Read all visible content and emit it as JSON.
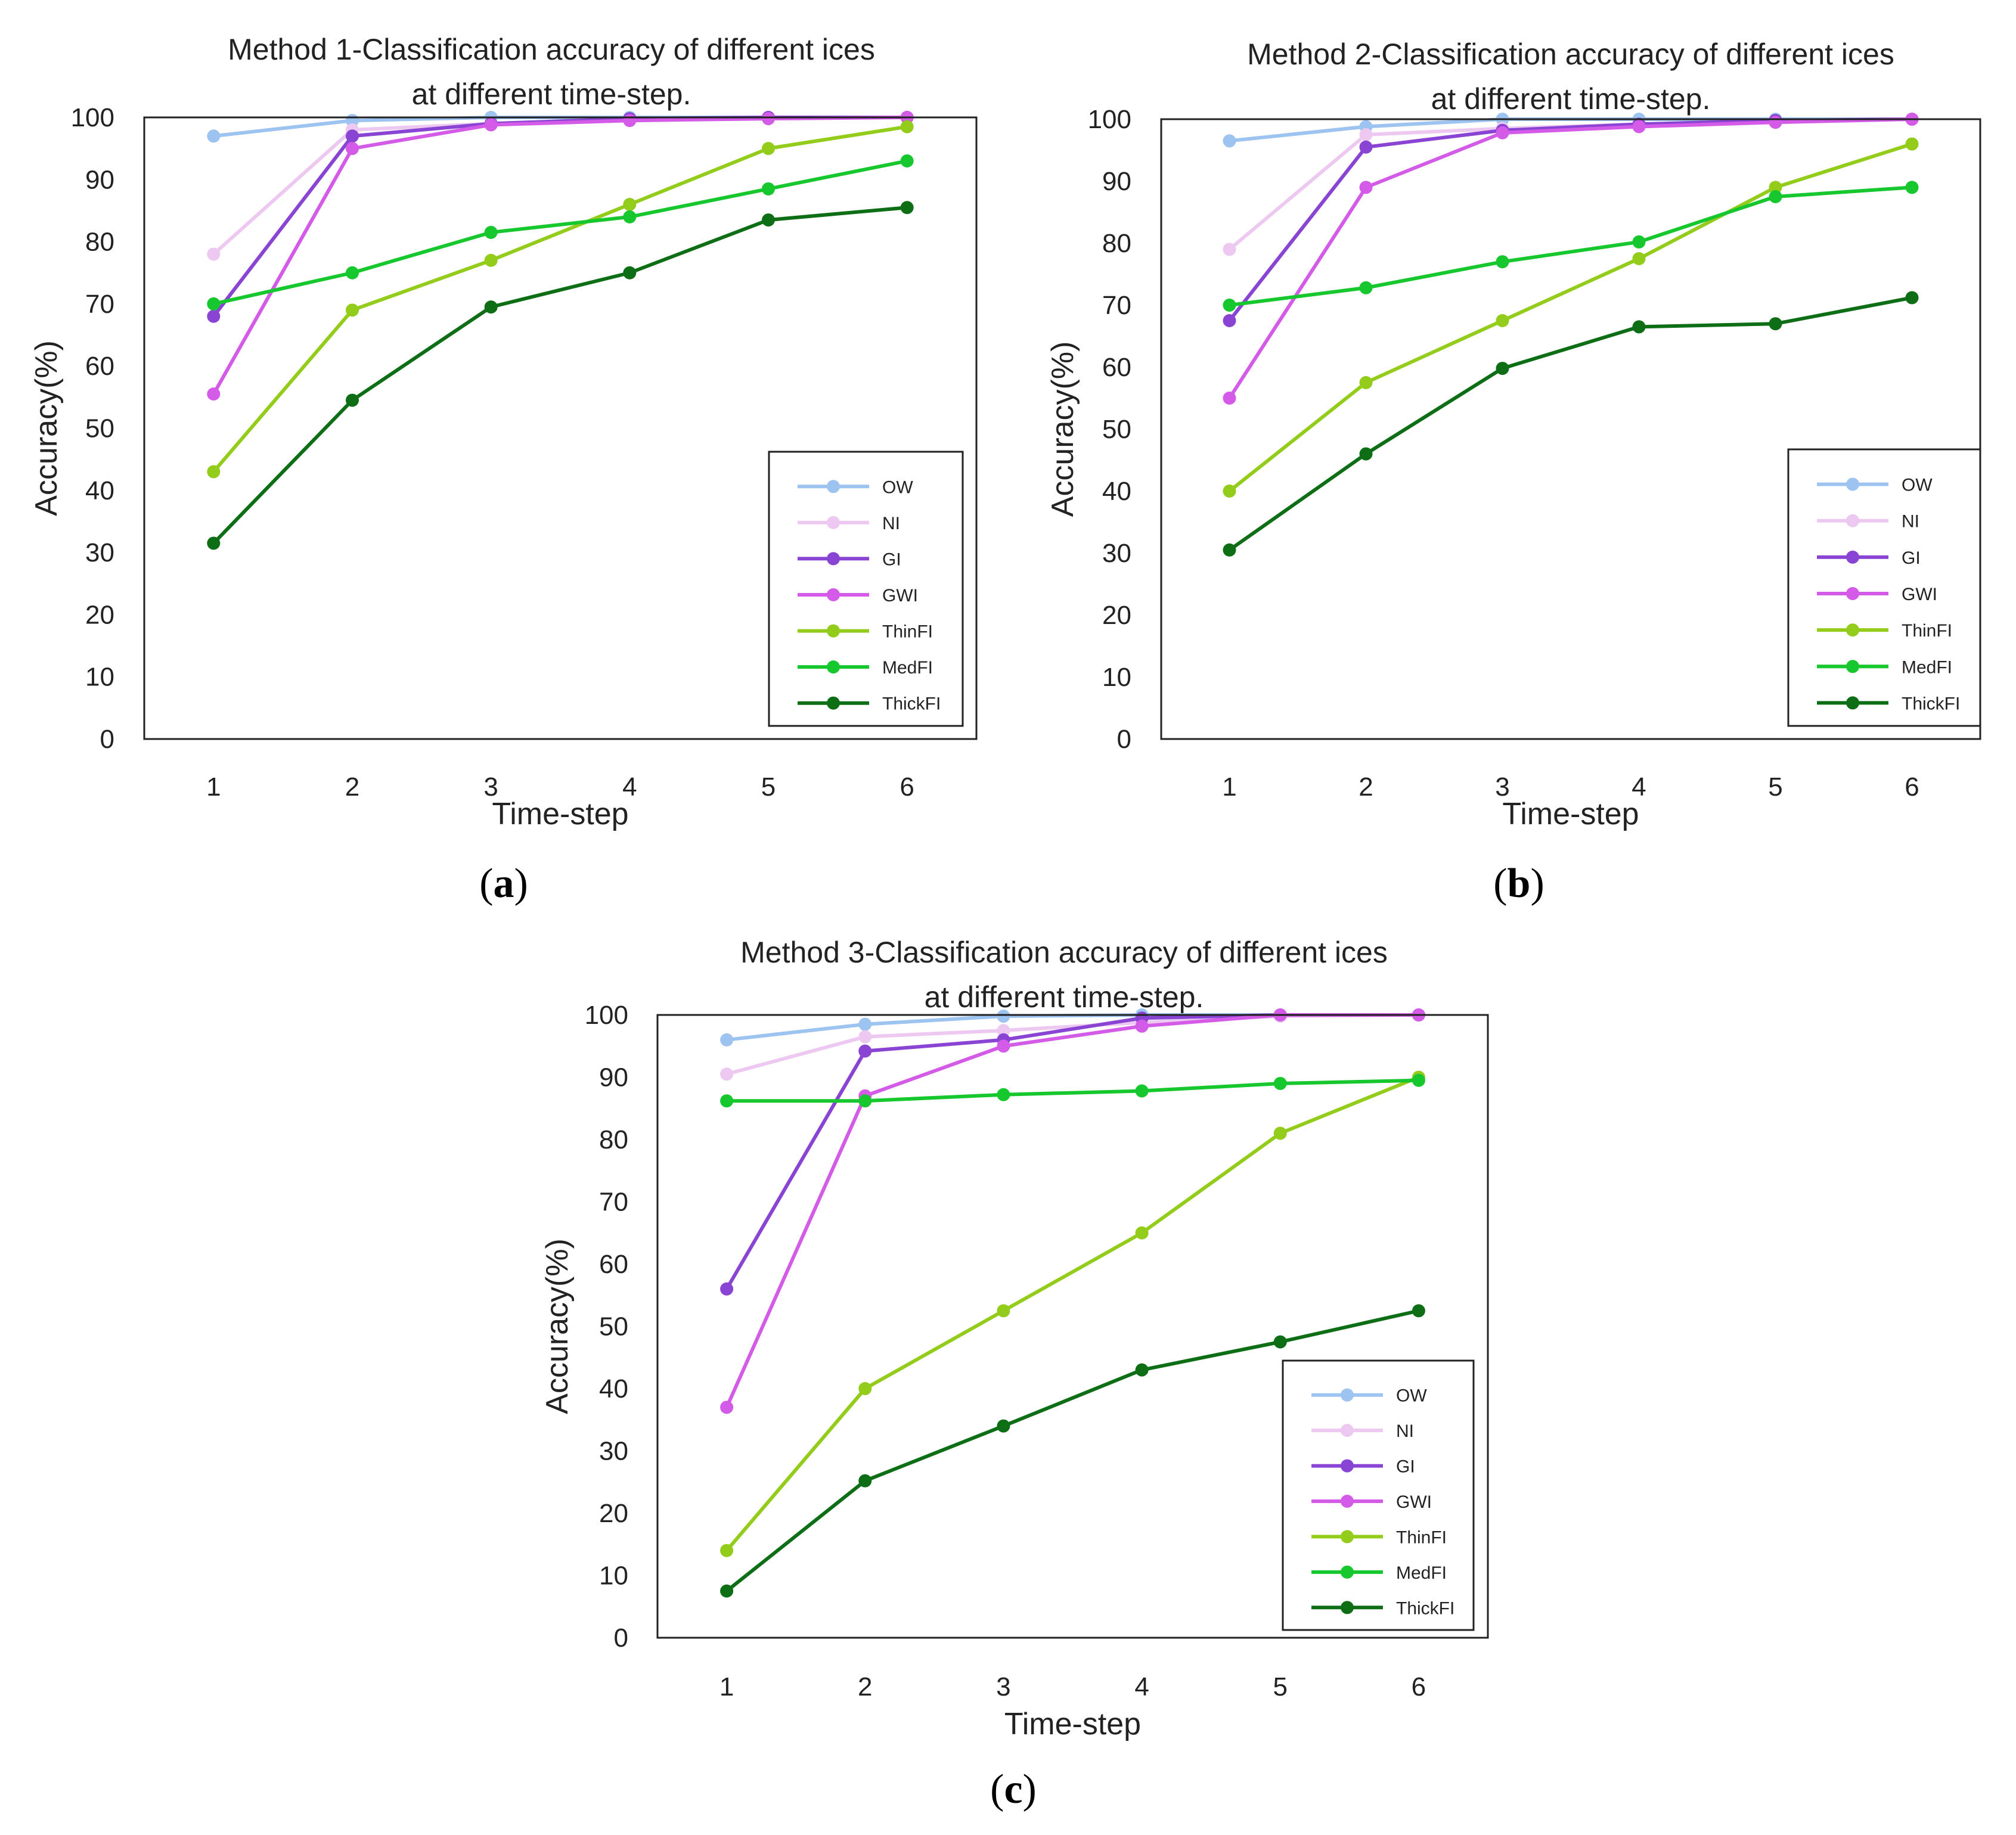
{
  "chart_data": [
    {
      "type": "line",
      "panel": "a",
      "title_lines": [
        "Method 1-Classification accuracy of different ices",
        "at different time-step."
      ],
      "xlabel": "Time-step",
      "ylabel": "Accuracy(%)",
      "x": [
        1,
        2,
        3,
        4,
        5,
        6
      ],
      "ylim": [
        0,
        100
      ],
      "yticks": [
        0,
        10,
        20,
        30,
        40,
        50,
        60,
        70,
        80,
        90,
        100
      ],
      "legend_position": "bottom-right",
      "series": [
        {
          "name": "OW",
          "color": "#9DC3F0",
          "values": [
            97,
            99.5,
            100,
            100,
            100,
            100
          ]
        },
        {
          "name": "NI",
          "color": "#EDC8F0",
          "values": [
            78,
            98,
            99,
            99.5,
            100,
            100
          ]
        },
        {
          "name": "GI",
          "color": "#8A44D4",
          "values": [
            68,
            97,
            99,
            99.8,
            100,
            100
          ]
        },
        {
          "name": "GWI",
          "color": "#D45BE8",
          "values": [
            55.5,
            95,
            98.8,
            99.5,
            99.8,
            100
          ]
        },
        {
          "name": "ThinFI",
          "color": "#94CC1C",
          "values": [
            43,
            69,
            77,
            86,
            95,
            98.5
          ]
        },
        {
          "name": "MedFI",
          "color": "#16C72E",
          "values": [
            70,
            75,
            81.5,
            84,
            88.5,
            93
          ]
        },
        {
          "name": "ThickFI",
          "color": "#0E6E16",
          "values": [
            31.5,
            54.5,
            69.5,
            75,
            83.5,
            85.5
          ]
        }
      ]
    },
    {
      "type": "line",
      "panel": "b",
      "title_lines": [
        "Method 2-Classification accuracy of different ices",
        "at different time-step."
      ],
      "xlabel": "Time-step",
      "ylabel": "Accuracy(%)",
      "x": [
        1,
        2,
        3,
        4,
        5,
        6
      ],
      "ylim": [
        0,
        100
      ],
      "yticks": [
        0,
        10,
        20,
        30,
        40,
        50,
        60,
        70,
        80,
        90,
        100
      ],
      "legend_position": "bottom-right",
      "series": [
        {
          "name": "OW",
          "color": "#9DC3F0",
          "values": [
            96.5,
            98.8,
            100,
            100,
            100,
            100
          ]
        },
        {
          "name": "NI",
          "color": "#EDC8F0",
          "values": [
            79,
            97.5,
            98.5,
            99.2,
            99.8,
            100
          ]
        },
        {
          "name": "GI",
          "color": "#8A44D4",
          "values": [
            67.5,
            95.5,
            98.2,
            99.2,
            99.8,
            100
          ]
        },
        {
          "name": "GWI",
          "color": "#D45BE8",
          "values": [
            55,
            89,
            97.8,
            98.8,
            99.5,
            100
          ]
        },
        {
          "name": "ThinFI",
          "color": "#94CC1C",
          "values": [
            40,
            57.5,
            67.5,
            77.5,
            89,
            96
          ]
        },
        {
          "name": "MedFI",
          "color": "#16C72E",
          "values": [
            70,
            72.8,
            77,
            80.2,
            87.5,
            89
          ]
        },
        {
          "name": "ThickFI",
          "color": "#0E6E16",
          "values": [
            30.5,
            46,
            59.8,
            66.5,
            67,
            71.2
          ]
        }
      ]
    },
    {
      "type": "line",
      "panel": "c",
      "title_lines": [
        "Method 3-Classification accuracy of different ices",
        "at different time-step."
      ],
      "xlabel": "Time-step",
      "ylabel": "Accuracy(%)",
      "x": [
        1,
        2,
        3,
        4,
        5,
        6
      ],
      "ylim": [
        0,
        100
      ],
      "yticks": [
        0,
        10,
        20,
        30,
        40,
        50,
        60,
        70,
        80,
        90,
        100
      ],
      "legend_position": "bottom-right",
      "series": [
        {
          "name": "OW",
          "color": "#9DC3F0",
          "values": [
            96,
            98.5,
            99.8,
            100,
            100,
            100
          ]
        },
        {
          "name": "NI",
          "color": "#EDC8F0",
          "values": [
            90.5,
            96.5,
            97.5,
            98.8,
            99.8,
            100
          ]
        },
        {
          "name": "GI",
          "color": "#8A44D4",
          "values": [
            56,
            94.2,
            96,
            99.5,
            100,
            100
          ]
        },
        {
          "name": "GWI",
          "color": "#D45BE8",
          "values": [
            37,
            87,
            95,
            98.2,
            100,
            100
          ]
        },
        {
          "name": "ThinFI",
          "color": "#94CC1C",
          "values": [
            14,
            40,
            52.5,
            65,
            81,
            90
          ]
        },
        {
          "name": "MedFI",
          "color": "#16C72E",
          "values": [
            86.2,
            86.2,
            87.2,
            87.8,
            89,
            89.5
          ]
        },
        {
          "name": "ThickFI",
          "color": "#0E6E16",
          "values": [
            7.5,
            25.2,
            34,
            43,
            47.5,
            52.5
          ]
        }
      ]
    }
  ],
  "panel_labels": {
    "a": "a",
    "b": "b",
    "c": "c"
  }
}
